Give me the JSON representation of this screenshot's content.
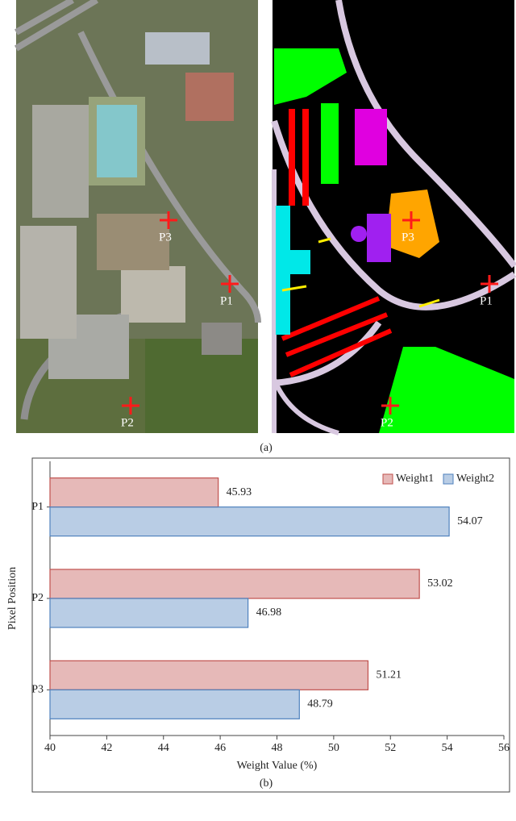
{
  "figure_a": {
    "left_labels": [
      "P1",
      "P2",
      "P3"
    ],
    "right_labels": [
      "P1",
      "P2",
      "P3"
    ],
    "caption": "(a)"
  },
  "chart_data": {
    "type": "hbar",
    "xlabel": "Weight Value (%)",
    "ylabel": "Pixel Position",
    "categories": [
      "P1",
      "P2",
      "P3"
    ],
    "series": [
      {
        "name": "Weight1",
        "color": "#c0504d",
        "values": [
          45.93,
          53.02,
          51.21
        ]
      },
      {
        "name": "Weight2",
        "color": "#4f81bd",
        "values": [
          54.07,
          46.98,
          48.79
        ]
      }
    ],
    "xlim": [
      40,
      56
    ],
    "xticks": [
      40,
      42,
      44,
      46,
      48,
      50,
      52,
      54,
      56
    ],
    "legend": "upper right"
  },
  "figure_b_caption": "(b)"
}
